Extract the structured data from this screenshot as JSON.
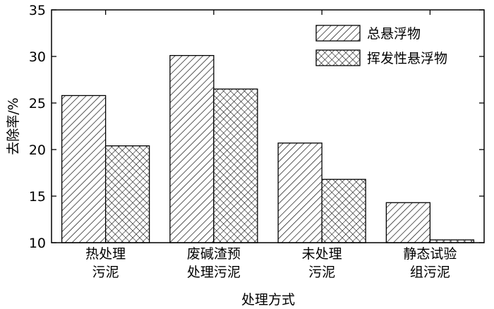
{
  "chart_data": {
    "type": "bar",
    "title": "",
    "xlabel": "处理方式",
    "ylabel": "去除率/%",
    "ylim": [
      10,
      35
    ],
    "yticks": [
      10,
      15,
      20,
      25,
      30,
      35
    ],
    "categories": [
      [
        "热处理",
        "污泥"
      ],
      [
        "废碱渣预",
        "处理污泥"
      ],
      [
        "未处理",
        "污泥"
      ],
      [
        "静态试验",
        "组污泥"
      ]
    ],
    "series": [
      {
        "name": "总悬浮物",
        "pattern": "diagonal-hatch",
        "values": [
          25.8,
          30.1,
          20.7,
          14.3
        ]
      },
      {
        "name": "挥发性悬浮物",
        "pattern": "cross-hatch",
        "values": [
          20.4,
          26.5,
          16.8,
          10.3
        ]
      }
    ],
    "grid": false,
    "legend_position": "top-right",
    "colors": {
      "stroke": "#000000",
      "background": "#ffffff"
    }
  }
}
